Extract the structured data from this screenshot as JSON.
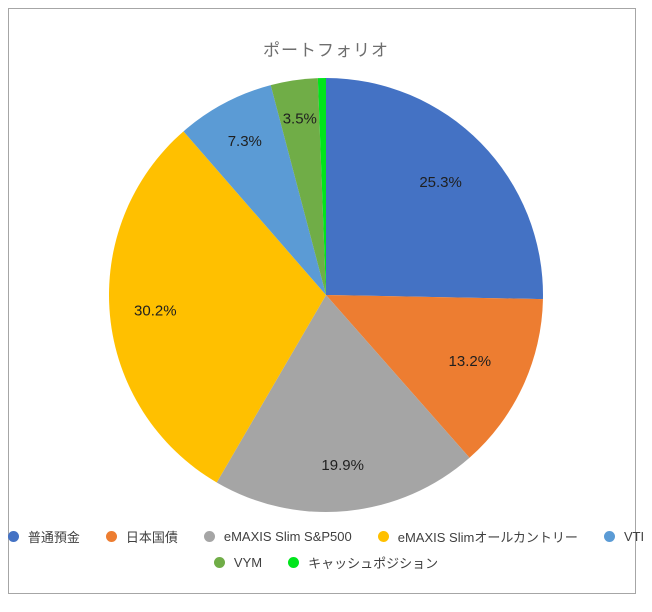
{
  "chart_data": {
    "type": "pie",
    "title": "ポートフォリオ",
    "direction": "clockwise",
    "start_angle_deg": 0,
    "legend_position": "bottom",
    "legend_rows": [
      [
        0,
        1,
        2,
        3,
        4
      ],
      [
        5,
        6
      ]
    ],
    "slices": [
      {
        "label": "普通預金",
        "value": 25.3,
        "data_label": "25.3%",
        "color": "#4472C4"
      },
      {
        "label": "日本国債",
        "value": 13.2,
        "data_label": "13.2%",
        "color": "#ED7D31"
      },
      {
        "label": "eMAXIS Slim S&P500",
        "value": 19.9,
        "data_label": "19.9%",
        "color": "#A5A5A5"
      },
      {
        "label": "eMAXIS Slimオールカントリー",
        "value": 30.2,
        "data_label": "30.2%",
        "color": "#FFC000"
      },
      {
        "label": "VTI",
        "value": 7.3,
        "data_label": "7.3%",
        "color": "#5B9BD5"
      },
      {
        "label": "VYM",
        "value": 3.5,
        "data_label": "3.5%",
        "color": "#70AD47"
      },
      {
        "label": "キャッシュポジション",
        "value": 0.6,
        "data_label": "",
        "color": "#00E51C"
      }
    ]
  },
  "colors": {
    "title_text": "#6E6E6E",
    "data_label_text": "#1F1F1F",
    "legend_text": "#404040",
    "chart_border": "#A6A6A6",
    "background": "#FFFFFF"
  }
}
